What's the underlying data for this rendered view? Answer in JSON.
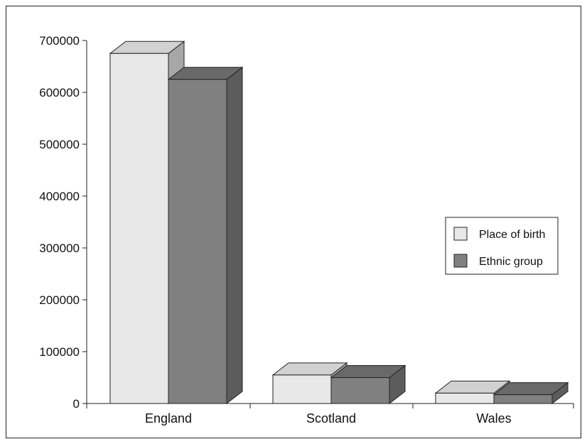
{
  "chart_data": {
    "type": "bar",
    "categories": [
      "England",
      "Scotland",
      "Wales"
    ],
    "series": [
      {
        "name": "Place of birth",
        "values": [
          675000,
          55000,
          20000
        ],
        "color": "#e8e8e8"
      },
      {
        "name": "Ethnic group",
        "values": [
          625000,
          50000,
          17000
        ],
        "color": "#808080"
      }
    ],
    "ylim": [
      0,
      700000
    ],
    "yticks": [
      0,
      100000,
      200000,
      300000,
      400000,
      500000,
      600000,
      700000
    ],
    "ytick_labels": [
      "0",
      "100000",
      "200000",
      "300000",
      "400000",
      "500000",
      "600000",
      "700000"
    ],
    "title": "",
    "xlabel": "",
    "ylabel": "",
    "grid": false,
    "legend_position": "right",
    "three_d": true
  }
}
